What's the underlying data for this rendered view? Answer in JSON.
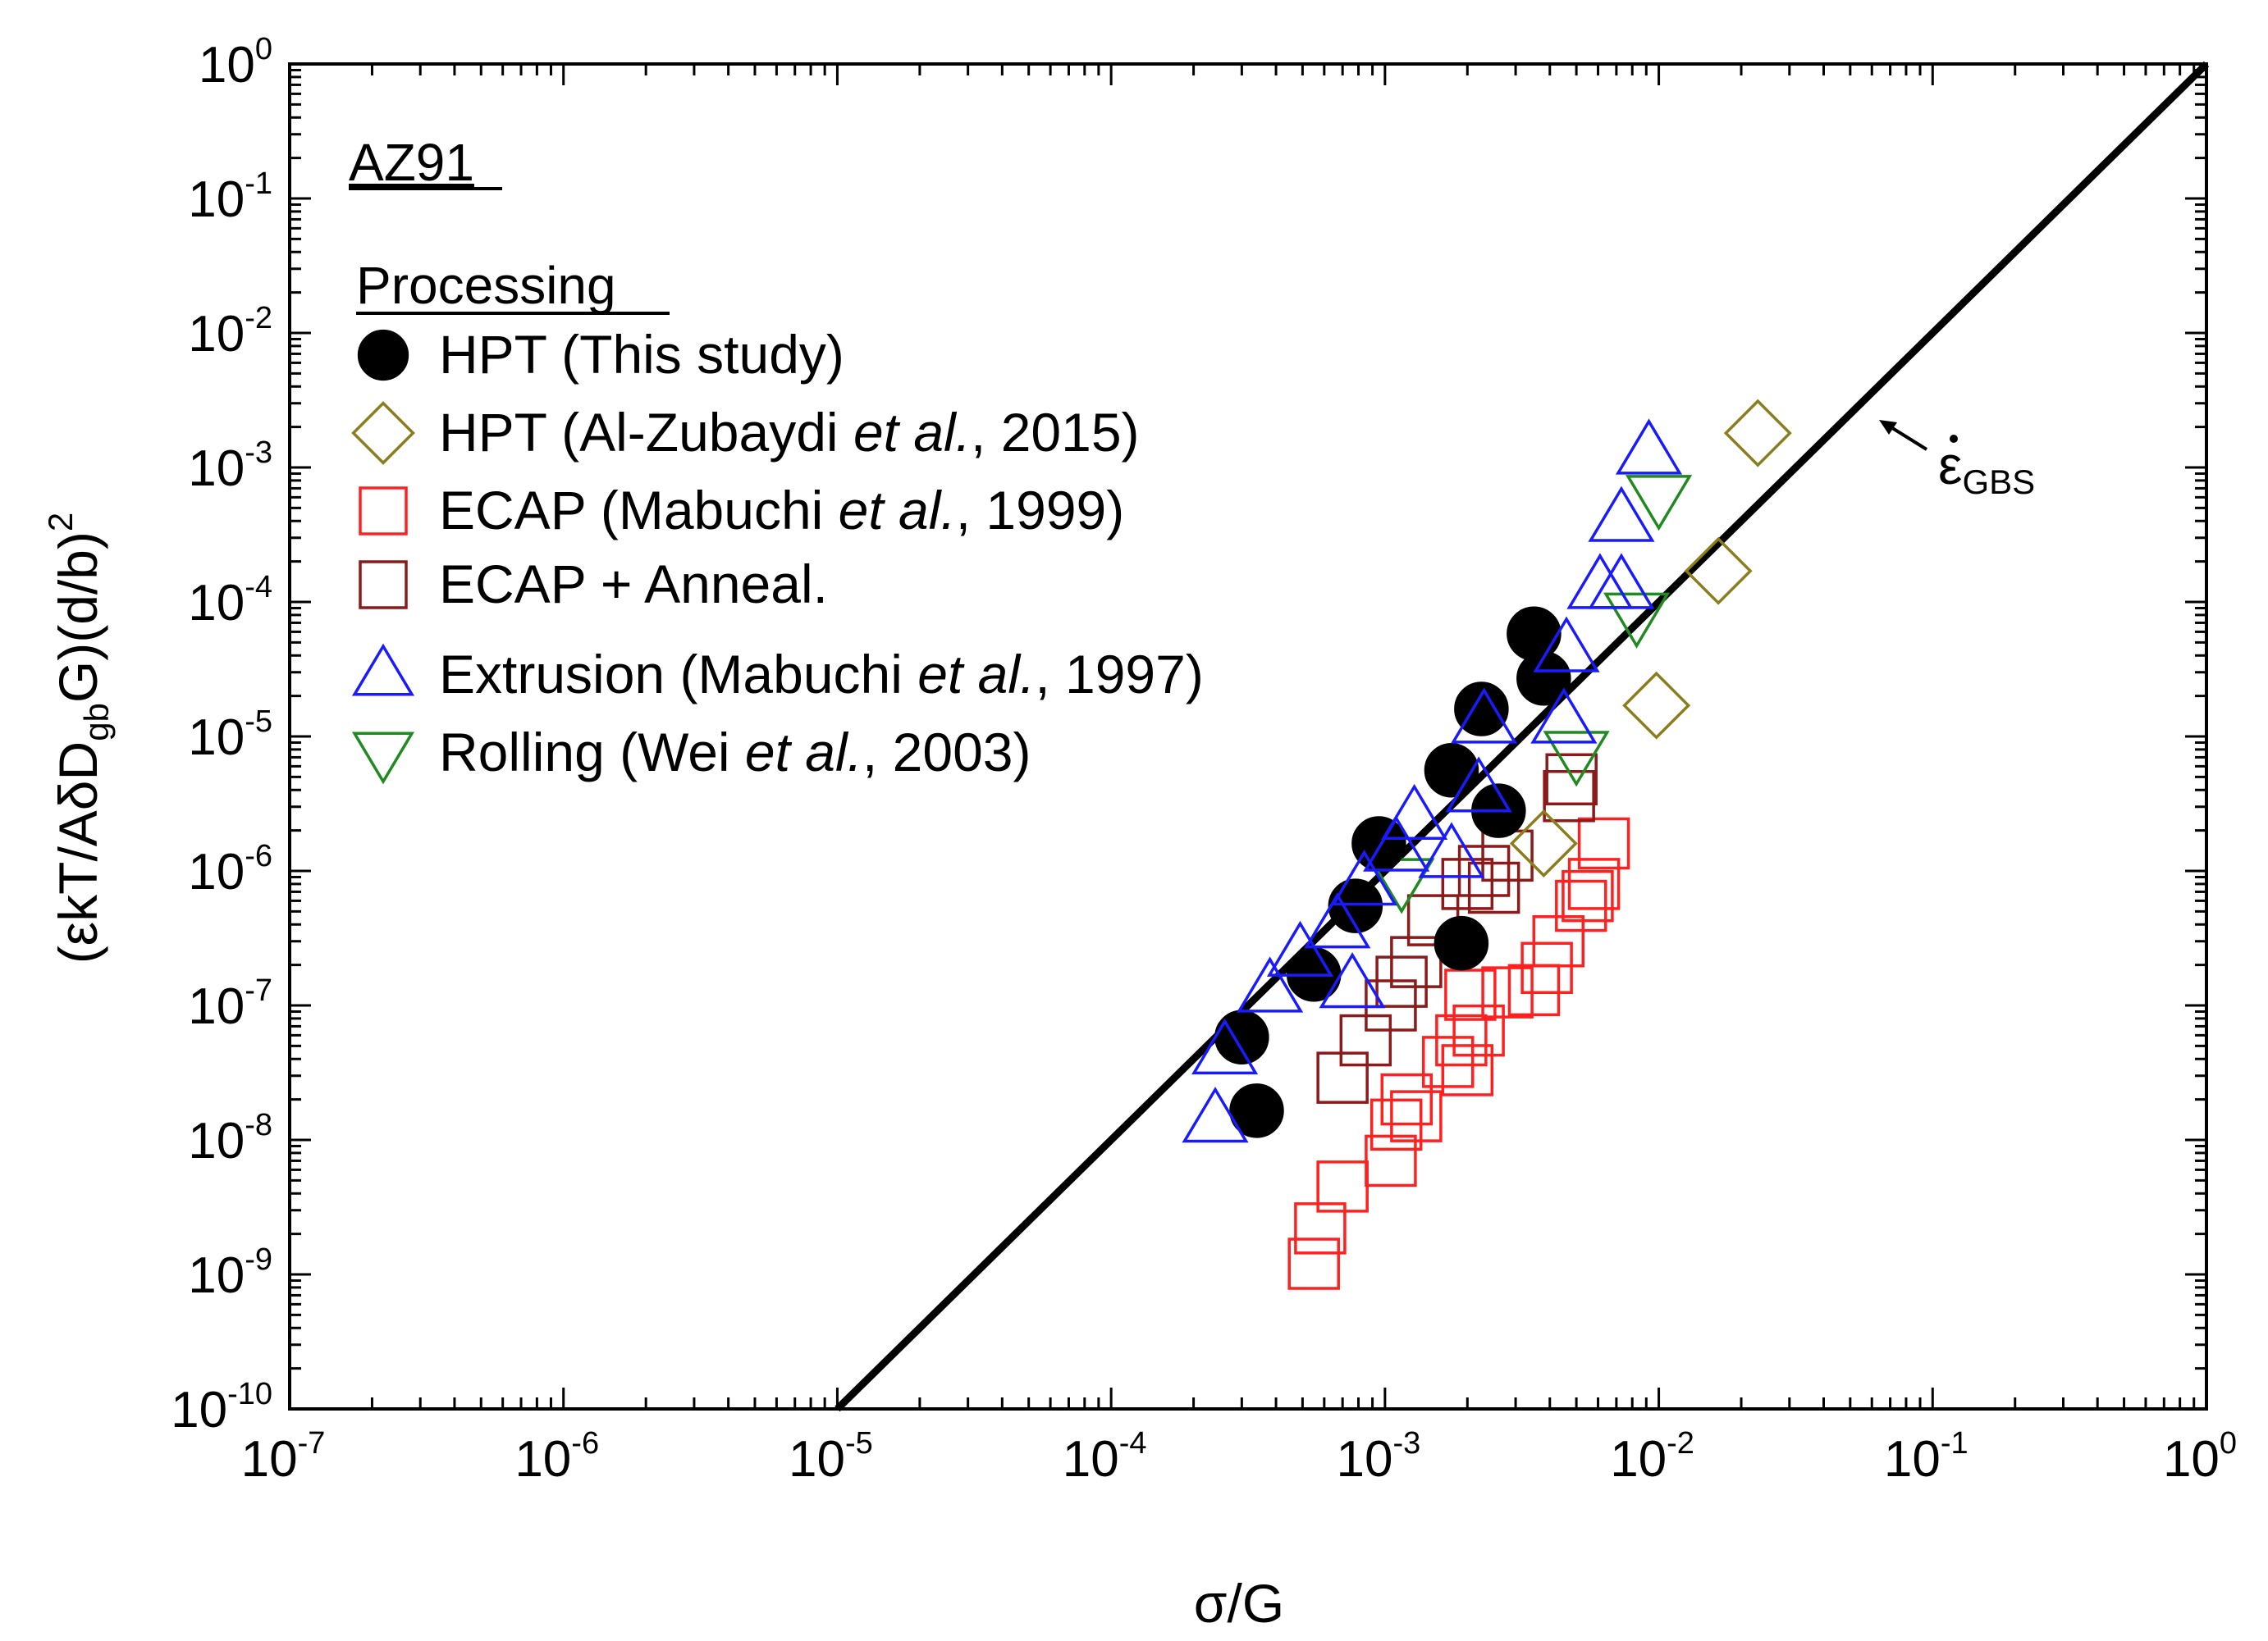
{
  "chart_data": {
    "type": "scatter",
    "scale": "log-log",
    "alloy_label": "AZ91",
    "legend_heading": "Processing",
    "xlabel": "σ/G",
    "ylabel": {
      "open": "(",
      "rate": "ε",
      "rate_dot": "̇",
      "mid1": "kT/AδD",
      "sub1": "gb",
      "mid2": "G)(d/b)",
      "sup": "2"
    },
    "xlim": [
      1e-07,
      1
    ],
    "ylim": [
      1e-10,
      1
    ],
    "x_ticks": [
      {
        "base": "10",
        "exp": "-7"
      },
      {
        "base": "10",
        "exp": "-6"
      },
      {
        "base": "10",
        "exp": "-5"
      },
      {
        "base": "10",
        "exp": "-4"
      },
      {
        "base": "10",
        "exp": "-3"
      },
      {
        "base": "10",
        "exp": "-2"
      },
      {
        "base": "10",
        "exp": "-1"
      },
      {
        "base": "10",
        "exp": "0"
      }
    ],
    "y_ticks": [
      {
        "base": "10",
        "exp": "-10"
      },
      {
        "base": "10",
        "exp": "-9"
      },
      {
        "base": "10",
        "exp": "-8"
      },
      {
        "base": "10",
        "exp": "-7"
      },
      {
        "base": "10",
        "exp": "-6"
      },
      {
        "base": "10",
        "exp": "-5"
      },
      {
        "base": "10",
        "exp": "-4"
      },
      {
        "base": "10",
        "exp": "-3"
      },
      {
        "base": "10",
        "exp": "-2"
      },
      {
        "base": "10",
        "exp": "-1"
      },
      {
        "base": "10",
        "exp": "0"
      }
    ],
    "reference_line": {
      "name": "GBS",
      "label_symbol": "ε",
      "label_sub": "GBS",
      "x": [
        1e-05,
        1
      ],
      "y": [
        1e-10,
        1
      ],
      "color": "#000000"
    },
    "series": [
      {
        "name": "HPT (This study)",
        "label_parts": [
          {
            "t": "HPT  (This study)",
            "i": false
          }
        ],
        "marker": "circle",
        "filled": true,
        "color": "#000000",
        "points": [
          [
            0.0003,
            5.8e-08
          ],
          [
            0.00034,
            1.65e-08
          ],
          [
            0.00055,
            1.7e-07
          ],
          [
            0.00078,
            5.5e-07
          ],
          [
            0.00095,
            1.6e-06
          ],
          [
            0.00175,
            5.6e-06
          ],
          [
            0.0019,
            2.9e-07
          ],
          [
            0.00225,
            1.6e-05
          ],
          [
            0.0026,
            2.8e-06
          ],
          [
            0.0035,
            5.8e-05
          ],
          [
            0.0038,
            2.7e-05
          ]
        ]
      },
      {
        "name": "HPT (Al-Zubaydi et al., 2015)",
        "label_parts": [
          {
            "t": "HPT  (Al-Zubaydi ",
            "i": false
          },
          {
            "t": "et al.",
            "i": true
          },
          {
            "t": ", 2015)",
            "i": false
          }
        ],
        "marker": "diamond",
        "filled": false,
        "color": "#8b7d1e",
        "points": [
          [
            0.0038,
            1.6e-06
          ],
          [
            0.0098,
            1.7e-05
          ],
          [
            0.0165,
            0.00017
          ],
          [
            0.023,
            0.0018
          ]
        ]
      },
      {
        "name": "ECAP (Mabuchi et al., 1999)",
        "label_parts": [
          {
            "t": "ECAP (Mabuchi ",
            "i": false
          },
          {
            "t": "et al.",
            "i": true
          },
          {
            "t": ", 1999)",
            "i": false
          }
        ],
        "marker": "square",
        "filled": false,
        "color": "#ff2020",
        "points": [
          [
            0.00055,
            1.2e-09
          ],
          [
            0.00058,
            2.2e-09
          ],
          [
            0.0007,
            4.5e-09
          ],
          [
            0.00105,
            7e-09
          ],
          [
            0.0011,
            1.3e-08
          ],
          [
            0.0012,
            2e-08
          ],
          [
            0.0013,
            1.5e-08
          ],
          [
            0.0017,
            3.8e-08
          ],
          [
            0.0019,
            5.5e-08
          ],
          [
            0.002,
            3.3e-08
          ],
          [
            0.00205,
            1.2e-07
          ],
          [
            0.0022,
            6.5e-08
          ],
          [
            0.0028,
            1.25e-07
          ],
          [
            0.0035,
            1.3e-07
          ],
          [
            0.0039,
            1.9e-07
          ],
          [
            0.0043,
            3e-07
          ],
          [
            0.0052,
            5.5e-07
          ],
          [
            0.0055,
            6.5e-07
          ],
          [
            0.0058,
            8e-07
          ],
          [
            0.0063,
            1.6e-06
          ]
        ]
      },
      {
        "name": "ECAP + Anneal.",
        "label_parts": [
          {
            "t": "ECAP + Anneal.",
            "i": false
          }
        ],
        "marker": "square",
        "filled": false,
        "color": "#8b1a1a",
        "points": [
          [
            0.0007,
            2.9e-08
          ],
          [
            0.00085,
            5.5e-08
          ],
          [
            0.00105,
            1e-07
          ],
          [
            0.00115,
            1.5e-07
          ],
          [
            0.0013,
            2.1e-07
          ],
          [
            0.0015,
            4.3e-07
          ],
          [
            0.002,
            8e-07
          ],
          [
            0.0023,
            1e-06
          ],
          [
            0.0025,
            7.5e-07
          ],
          [
            0.0028,
            1.3e-06
          ],
          [
            0.0047,
            3.6e-06
          ],
          [
            0.0048,
            4.8e-06
          ]
        ]
      },
      {
        "name": "Extrusion (Mabuchi et al., 1997)",
        "label_parts": [
          {
            "t": "Extrusion  (Mabuchi ",
            "i": false
          },
          {
            "t": "et al.",
            "i": true
          },
          {
            "t": ", 1997)",
            "i": false
          }
        ],
        "marker": "triangle-up",
        "filled": false,
        "color": "#1a1aff",
        "points": [
          [
            0.00024,
            1.4e-08
          ],
          [
            0.00026,
            4.5e-08
          ],
          [
            0.00038,
            1.3e-07
          ],
          [
            0.00049,
            2.4e-07
          ],
          [
            0.00067,
            3.9e-07
          ],
          [
            0.00076,
            1.4e-07
          ],
          [
            0.00084,
            8.1e-07
          ],
          [
            0.0011,
            1.45e-06
          ],
          [
            0.00128,
            2.5e-06
          ],
          [
            0.00175,
            1.3e-06
          ],
          [
            0.0022,
            4e-06
          ],
          [
            0.0023,
            1.3e-05
          ],
          [
            0.0045,
            1.3e-05
          ],
          [
            0.0046,
            4.4e-05
          ],
          [
            0.0061,
            0.00013
          ],
          [
            0.0073,
            0.00013
          ],
          [
            0.0073,
            0.00041
          ],
          [
            0.0092,
            0.0013
          ]
        ]
      },
      {
        "name": "Rolling (Wei et al., 2003)",
        "label_parts": [
          {
            "t": "Rolling  (Wei ",
            "i": false
          },
          {
            "t": "et al.",
            "i": true
          },
          {
            "t": ", 2003)",
            "i": false
          }
        ],
        "marker": "triangle-down",
        "filled": false,
        "color": "#1f8a1f",
        "points": [
          [
            0.00115,
            8.5e-07
          ],
          [
            0.005,
            7.5e-06
          ],
          [
            0.0083,
            8e-05
          ],
          [
            0.01,
            0.0006
          ]
        ]
      }
    ]
  }
}
